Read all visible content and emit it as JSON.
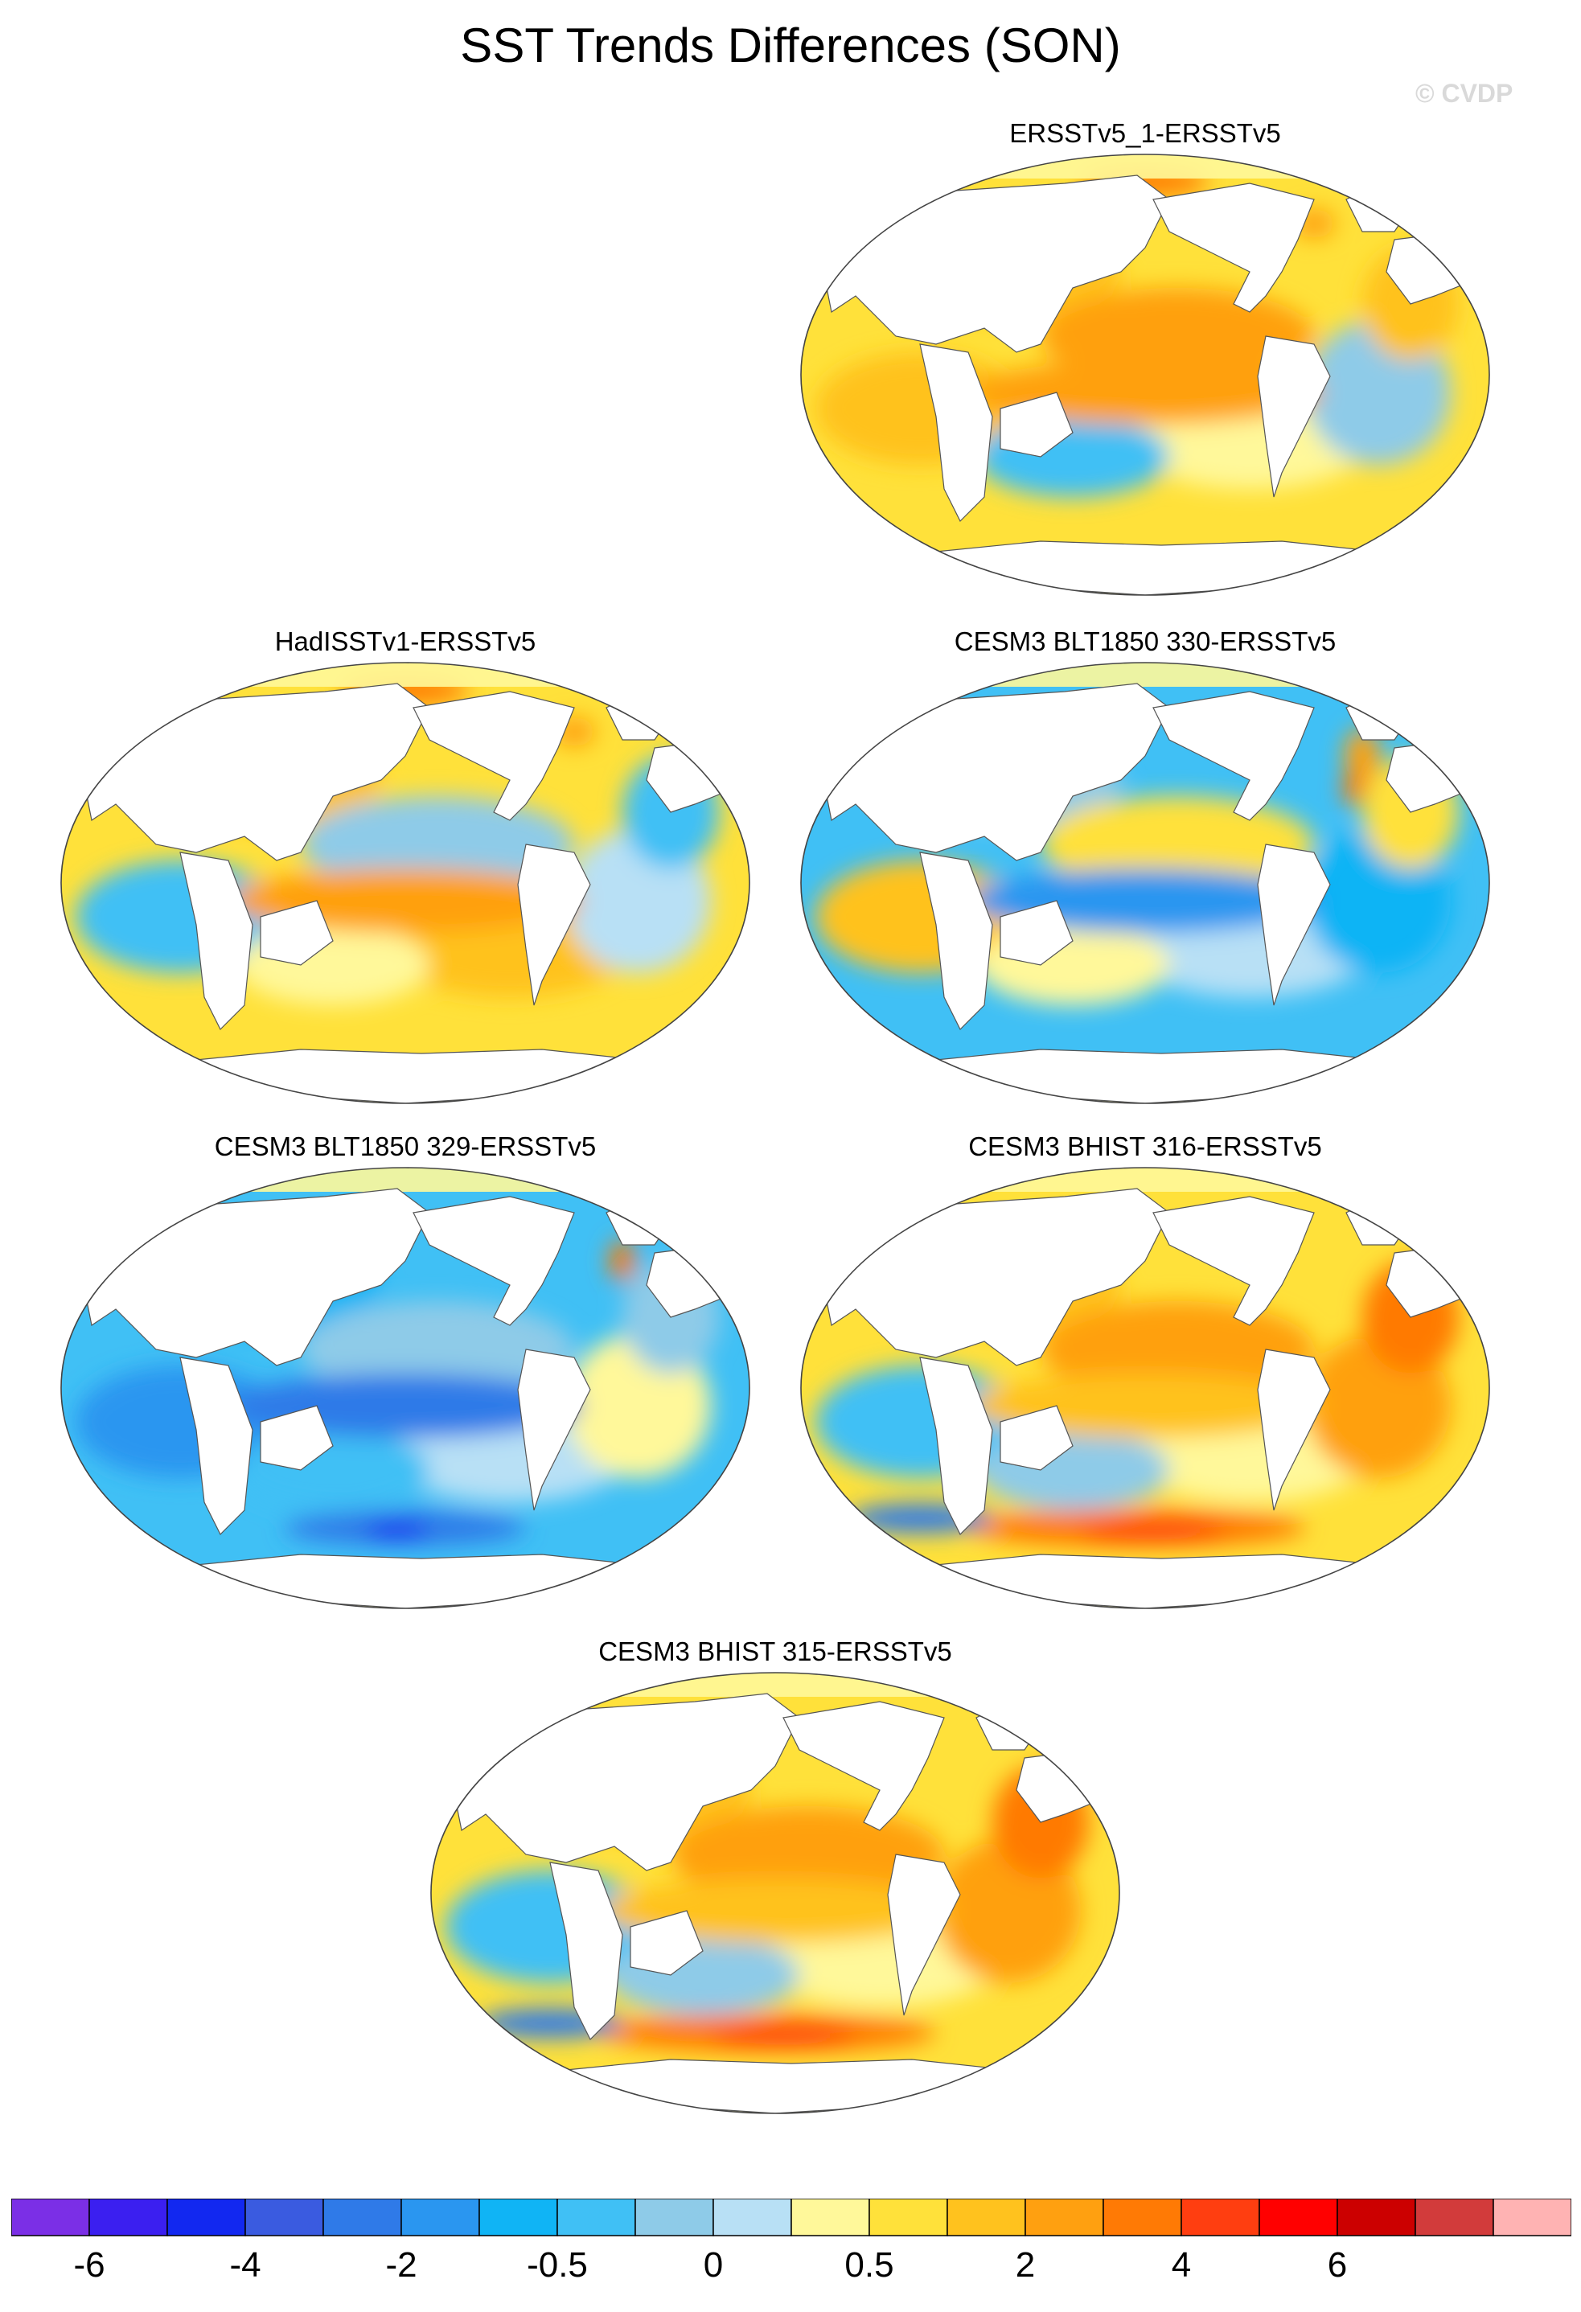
{
  "header": {
    "title": "SST Trends Differences (SON)",
    "watermark": "© CVDP"
  },
  "panels": [
    {
      "title": "ERSSTv5_1-ERSSTv5",
      "palette": "warm",
      "hotspot": "arctic"
    },
    {
      "title": "HadISSTv1-ERSSTv5",
      "palette": "mixed_warm",
      "hotspot": "arctic"
    },
    {
      "title": "CESM3 BLT1850 330-ERSSTv5",
      "palette": "mixed_cool",
      "hotspot": "atlantic"
    },
    {
      "title": "CESM3 BLT1850 329-ERSSTv5",
      "palette": "cool",
      "hotspot": "southern_cold"
    },
    {
      "title": "CESM3 BHIST 316-ERSSTv5",
      "palette": "warm_strong",
      "hotspot": "southern_hot"
    },
    {
      "title": "CESM3 BHIST 315-ERSSTv5",
      "palette": "warm_strong",
      "hotspot": "southern_hot"
    }
  ],
  "colorbar": {
    "colors": [
      "#7b2fe6",
      "#3b1ff0",
      "#1228f0",
      "#3a5be0",
      "#2f7ae8",
      "#2a96f0",
      "#10b4f5",
      "#40c0f5",
      "#8ecbe8",
      "#b8e0f5",
      "#fff89a",
      "#ffe13a",
      "#ffc21e",
      "#ffa010",
      "#ff7a05",
      "#ff3e10",
      "#ff0000",
      "#cc0000",
      "#d23b3b",
      "#ffb3b3"
    ],
    "labels": [
      "-6",
      "-4",
      "-2",
      "-0.5",
      "0",
      "0.5",
      "2",
      "4",
      "6"
    ]
  }
}
